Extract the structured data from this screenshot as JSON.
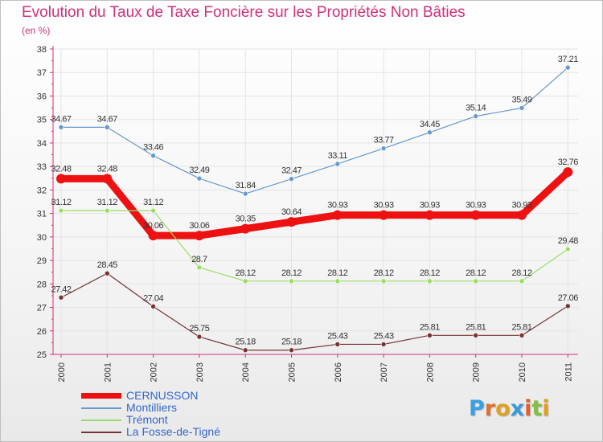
{
  "header": {
    "title": "Evolution du Taux de Taxe Foncière sur les Propriétés Non Bâties",
    "subtitle": "(en %)"
  },
  "colors": {
    "title": "#d0307a",
    "axis": "#d0307a",
    "tick_text": "#333333",
    "grid": "#e4e4e4"
  },
  "logo": {
    "letters": [
      {
        "ch": "P",
        "color": "#3aa0e0"
      },
      {
        "ch": "r",
        "color": "#e07030"
      },
      {
        "ch": "o",
        "color": "#e0a020"
      },
      {
        "ch": "x",
        "color": "#3a9ad8"
      },
      {
        "ch": "i",
        "color": "#e06030"
      },
      {
        "ch": "t",
        "color": "#80c040"
      },
      {
        "ch": "i",
        "color": "#e0a020"
      }
    ]
  },
  "chart_data": {
    "type": "line",
    "title": "Evolution du Taux de Taxe Foncière sur les Propriétés Non Bâties",
    "ylabel": "(en %)",
    "xlabel": "",
    "ylim": [
      25,
      38
    ],
    "yticks": [
      "25",
      "26",
      "27",
      "28",
      "29",
      "30",
      "31",
      "32",
      "33",
      "34",
      "35",
      "36",
      "37",
      "38"
    ],
    "x": [
      "2000",
      "2001",
      "2002",
      "2003",
      "2004",
      "2005",
      "2006",
      "2007",
      "2008",
      "2009",
      "2010",
      "2011"
    ],
    "grid": true,
    "legend_position": "bottom-left",
    "series": [
      {
        "name": "CERNUSSON",
        "color": "#ee1111",
        "width": 9,
        "marker": 6,
        "values": [
          32.48,
          32.48,
          30.06,
          30.06,
          30.35,
          30.64,
          30.93,
          30.93,
          30.93,
          30.93,
          30.93,
          32.76
        ],
        "labels": [
          "32.48",
          "32.48",
          "30.06",
          "30.06",
          "30.35",
          "30.64",
          "30.93",
          "30.93",
          "30.93",
          "30.93",
          "30.93",
          "32.76"
        ]
      },
      {
        "name": "Montilliers",
        "color": "#6699cc",
        "width": 1.2,
        "marker": 3,
        "values": [
          34.67,
          34.67,
          33.46,
          32.49,
          31.84,
          32.47,
          33.11,
          33.77,
          34.45,
          35.14,
          35.49,
          37.21
        ],
        "labels": [
          "34.67",
          "34.67",
          "33.46",
          "32.49",
          "31.84",
          "32.47",
          "33.11",
          "33.77",
          "34.45",
          "35.14",
          "35.49",
          "37.21"
        ]
      },
      {
        "name": "Trémont",
        "color": "#99dd66",
        "width": 1.2,
        "marker": 3,
        "values": [
          31.12,
          31.12,
          31.12,
          28.7,
          28.12,
          28.12,
          28.12,
          28.12,
          28.12,
          28.12,
          28.12,
          29.48
        ],
        "labels": [
          "31.12",
          "31.12",
          "31.12",
          "28.7",
          "28.12",
          "28.12",
          "28.12",
          "28.12",
          "28.12",
          "28.12",
          "28.12",
          "29.48"
        ]
      },
      {
        "name": "La Fosse-de-Tigné",
        "color": "#773333",
        "width": 1.2,
        "marker": 3,
        "values": [
          27.42,
          28.45,
          27.04,
          25.75,
          25.18,
          25.18,
          25.43,
          25.43,
          25.81,
          25.81,
          25.81,
          27.06
        ],
        "labels": [
          "27.42",
          "28.45",
          "27.04",
          "25.75",
          "25.18",
          "25.18",
          "25.43",
          "25.43",
          "25.81",
          "25.81",
          "25.81",
          "27.06"
        ]
      }
    ]
  }
}
